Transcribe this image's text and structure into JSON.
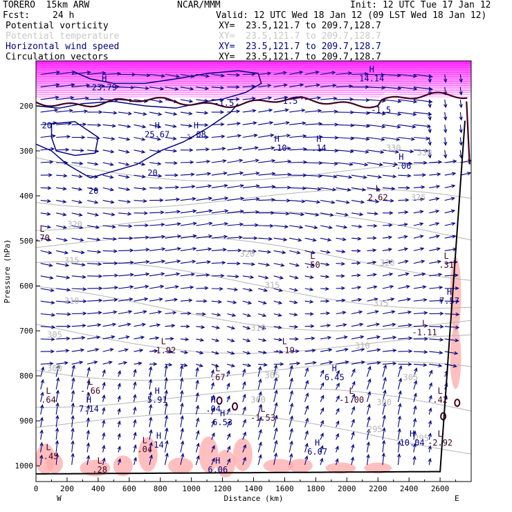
{
  "header": {
    "model": "TORERO  15km ARW",
    "center": "NCAR/MMM",
    "init": "Init: 12 UTC Tue 17 Jan 12",
    "fcst_label": "Fcst:",
    "fcst_value": "24 h",
    "valid": "Valid: 12 UTC Wed 18 Jan 12 (09 LST Wed 18 Jan 12)",
    "fields": [
      {
        "name": "Potential vorticity",
        "color": "#000000",
        "xy": "XY=  23.5,121.7 to 209.7,128.7"
      },
      {
        "name": "Potential temperature",
        "color": "#c8c8c8",
        "xy": "XY=  23.5,121.7 to 209.7,128.7"
      },
      {
        "name": "Horizontal wind speed",
        "color": "#000080",
        "xy": "XY=  23.5,121.7 to 209.7,128.7"
      },
      {
        "name": "Circulation vectors",
        "color": "#000000",
        "xy": "XY=  23.5,121.7 to 209.7,128.7"
      }
    ]
  },
  "colors": {
    "pv_shade": "#ff00ff",
    "pv_shade_low": "#ffaaaa",
    "theta": "#b4b4b4",
    "wind_speed": "#000080",
    "vector": "#000080",
    "pv_contour": "#400020",
    "ground": "#000000"
  },
  "chart_data": {
    "type": "cross-section",
    "xlabel": "Distance (km)",
    "ylabel": "Pressure (hPa)",
    "xlim": [
      0,
      2800
    ],
    "ylim": [
      1035,
      100
    ],
    "x_ticks": [
      0,
      200,
      400,
      600,
      800,
      1000,
      1200,
      1400,
      1600,
      1800,
      2000,
      2200,
      2400,
      2600
    ],
    "y_ticks": [
      200,
      300,
      400,
      500,
      600,
      700,
      800,
      900,
      1000
    ],
    "x_end_labels": {
      "left": "W",
      "right": "E"
    },
    "theta_labels": [
      {
        "text": "325",
        "x": 2460,
        "p": 410
      },
      {
        "text": "320",
        "x": 250,
        "p": 470
      },
      {
        "text": "320",
        "x": 1360,
        "p": 535
      },
      {
        "text": "320",
        "x": 2260,
        "p": 555
      },
      {
        "text": "315",
        "x": 230,
        "p": 550
      },
      {
        "text": "315",
        "x": 1520,
        "p": 605
      },
      {
        "text": "315",
        "x": 2220,
        "p": 645
      },
      {
        "text": "310",
        "x": 230,
        "p": 640
      },
      {
        "text": "310",
        "x": 1430,
        "p": 700
      },
      {
        "text": "310",
        "x": 2100,
        "p": 740
      },
      {
        "text": "305",
        "x": 120,
        "p": 715
      },
      {
        "text": "305",
        "x": 1520,
        "p": 805
      },
      {
        "text": "305",
        "x": 2410,
        "p": 810
      },
      {
        "text": "300",
        "x": 120,
        "p": 790
      },
      {
        "text": "300",
        "x": 1430,
        "p": 860
      },
      {
        "text": "300",
        "x": 2240,
        "p": 865
      },
      {
        "text": "295",
        "x": 2180,
        "p": 925
      },
      {
        "text": "295",
        "x": 2480,
        "p": 945
      },
      {
        "text": "330",
        "x": 2300,
        "p": 300
      },
      {
        "text": "330",
        "x": 2500,
        "p": 310
      }
    ],
    "wind_labels": [
      {
        "text": "20",
        "x": 70,
        "p": 250
      },
      {
        "text": "20",
        "x": 750,
        "p": 355
      },
      {
        "text": "20",
        "x": 370,
        "p": 395
      },
      {
        "text": "-1.5",
        "x": 1210,
        "p": 200
      },
      {
        "text": "-1.5",
        "x": 1620,
        "p": 195
      },
      {
        "text": "-1.5",
        "x": 2220,
        "p": 215
      }
    ],
    "extrema": [
      {
        "type": "H",
        "value": "23.79",
        "x": 440,
        "p": 165
      },
      {
        "type": "H",
        "value": "25.67",
        "x": 780,
        "p": 270
      },
      {
        "type": "H",
        "value": "-.08",
        "x": 1030,
        "p": 270
      },
      {
        "type": "H",
        "value": "-.10",
        "x": 1550,
        "p": 300
      },
      {
        "type": "H",
        "value": ".14",
        "x": 1820,
        "p": 300
      },
      {
        "type": "H",
        "value": "-.06",
        "x": 2350,
        "p": 340
      },
      {
        "type": "H",
        "value": "14.14",
        "x": 2160,
        "p": 145
      },
      {
        "type": "L",
        "value": "2.62",
        "x": 2200,
        "p": 410
      },
      {
        "type": "L",
        "value": ".70",
        "x": 40,
        "p": 500
      },
      {
        "type": "L",
        "value": ".50",
        "x": 1780,
        "p": 560
      },
      {
        "type": "L",
        "value": ".31",
        "x": 2640,
        "p": 560
      },
      {
        "type": "H",
        "value": "7.57",
        "x": 2660,
        "p": 640
      },
      {
        "type": "L",
        "value": "-1.11",
        "x": 2500,
        "p": 710
      },
      {
        "type": "L",
        "value": "-1.92",
        "x": 820,
        "p": 750
      },
      {
        "type": "L",
        "value": "-.19",
        "x": 1600,
        "p": 750
      },
      {
        "type": "L",
        "value": ".67",
        "x": 1170,
        "p": 810
      },
      {
        "type": "H",
        "value": "6.45",
        "x": 1920,
        "p": 810
      },
      {
        "type": "L",
        "value": ".64",
        "x": 80,
        "p": 860
      },
      {
        "type": "L",
        "value": "-.66",
        "x": 350,
        "p": 840
      },
      {
        "type": "H",
        "value": "5.91",
        "x": 780,
        "p": 860
      },
      {
        "type": "H",
        "value": "7.14",
        "x": 340,
        "p": 880
      },
      {
        "type": "L",
        "value": "-1.00",
        "x": 2030,
        "p": 860
      },
      {
        "type": "L",
        "value": ".42",
        "x": 2600,
        "p": 860
      },
      {
        "type": "H",
        "value": ".04",
        "x": 1140,
        "p": 880
      },
      {
        "type": "H",
        "value": "6.53",
        "x": 1200,
        "p": 910
      },
      {
        "type": "L",
        "value": "-1.53",
        "x": 1460,
        "p": 900
      },
      {
        "type": "H",
        "value": "10.04",
        "x": 2420,
        "p": 955
      },
      {
        "type": "L",
        "value": "-2.92",
        "x": 2600,
        "p": 955
      },
      {
        "type": "H",
        "value": "14",
        "x": 790,
        "p": 960
      },
      {
        "type": "L",
        "value": ".04",
        "x": 700,
        "p": 970
      },
      {
        "type": "H",
        "value": "6.07",
        "x": 1810,
        "p": 975
      },
      {
        "type": "L",
        "value": "-.45",
        "x": 80,
        "p": 985
      },
      {
        "type": "L",
        "value": ".28",
        "x": 410,
        "p": 1015
      },
      {
        "type": "H",
        "value": "6.06",
        "x": 1170,
        "p": 1015
      }
    ]
  }
}
